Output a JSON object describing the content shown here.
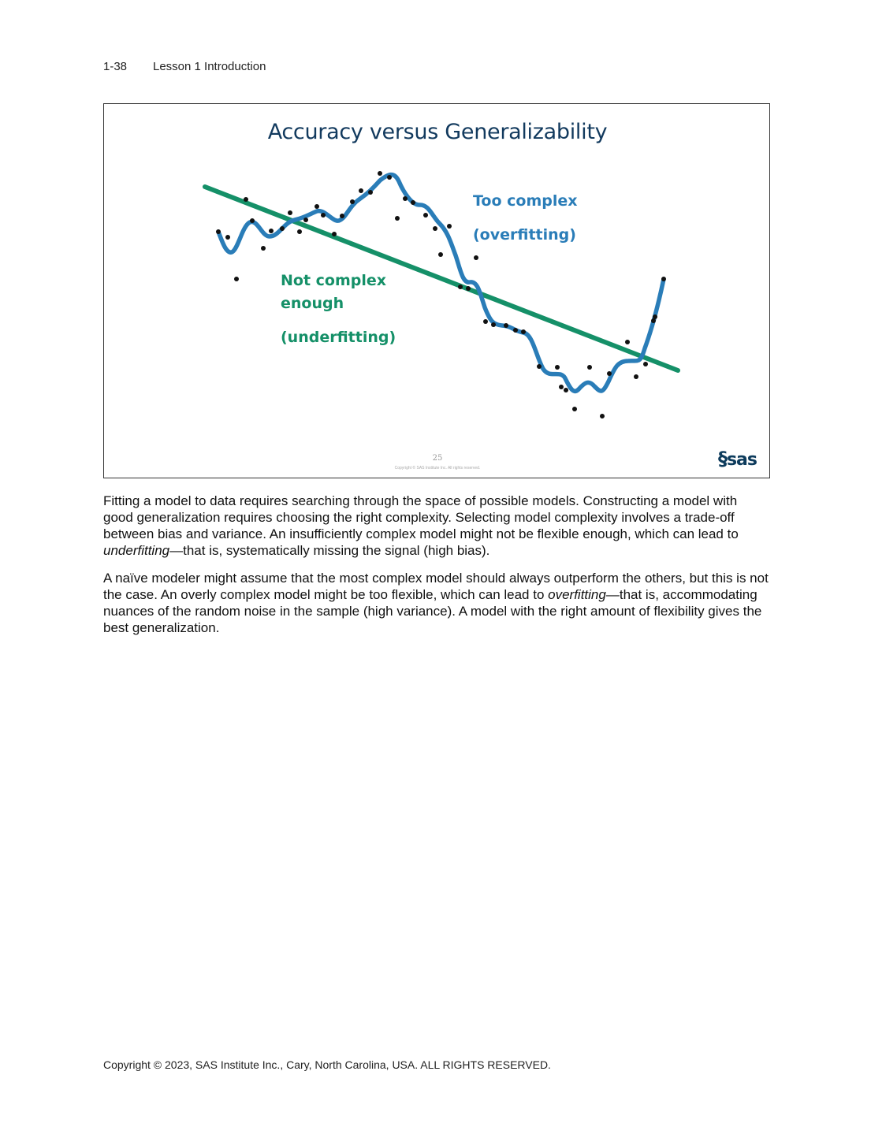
{
  "header": {
    "page_number": "1-38",
    "lesson": "Lesson 1  Introduction"
  },
  "slide": {
    "title": "Accuracy versus Generalizability",
    "label_over_1": "Too complex",
    "label_over_2": "(overfitting)",
    "label_under_1": "Not complex",
    "label_under_2": "enough",
    "label_under_3": "(underfitting)",
    "slide_number": "25",
    "slide_copyright": "Copyright © SAS Institute Inc. All rights reserved.",
    "logo": "Ssas",
    "colors": {
      "overfit": "#2a7db8",
      "underfit": "#159068",
      "points": "#111111"
    }
  },
  "body": {
    "p1_a": "Fitting a model to data requires searching through the space of possible models. Constructing a model with good generalization requires choosing the right complexity. Selecting model complexity involves a trade-off between bias and variance. An insufficiently complex model might not be flexible enough, which can lead to ",
    "p1_em": "underfitting",
    "p1_b": "—that is, systematically missing the signal (high bias).",
    "p2_a": "A naïve modeler might assume that the most complex model should always outperform the others, but this is not the case. An overly complex model might be too flexible, which can lead to ",
    "p2_em": "overfitting",
    "p2_b": "—that is, accommodating nuances of the random noise in the sample (high variance). A model with the right amount of flexibility gives the best generalization."
  },
  "footer": {
    "copyright": "Copyright © 2023, SAS Institute Inc., Cary, North Carolina, USA. ALL RIGHTS RESERVED."
  }
}
